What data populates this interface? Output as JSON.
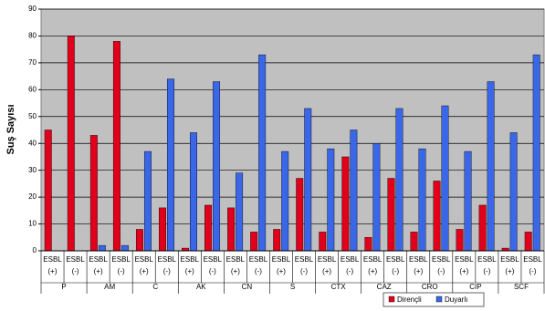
{
  "chart_data": {
    "type": "bar",
    "y_label": "Suş Sayısı",
    "groups": [
      "P",
      "AM",
      "C",
      "AK",
      "CN",
      "S",
      "CTX",
      "CAZ",
      "CRO",
      "CIP",
      "SCF"
    ],
    "categories": [
      [
        "ESBL",
        "(+)"
      ],
      [
        "ESBL",
        "(-)"
      ],
      [
        "ESBL",
        "(+)"
      ],
      [
        "ESBL",
        "(-)"
      ],
      [
        "ESBL",
        "(+)"
      ],
      [
        "ESBL",
        "(-)"
      ],
      [
        "ESBL",
        "(+)"
      ],
      [
        "ESBL",
        "(-)"
      ],
      [
        "ESBL",
        "(+)"
      ],
      [
        "ESBL",
        "(-)"
      ],
      [
        "ESBL",
        "(+)"
      ],
      [
        "ESBL",
        "(-)"
      ],
      [
        "ESBL",
        "(+)"
      ],
      [
        "ESBL",
        "(-)"
      ],
      [
        "ESBL",
        "(+)"
      ],
      [
        "ESBL",
        "(-)"
      ],
      [
        "ESBL",
        "(+)"
      ],
      [
        "ESBL",
        "(-)"
      ],
      [
        "ESBL",
        "(+)"
      ],
      [
        "ESBL",
        "(-)"
      ],
      [
        "ESBL",
        "(+)"
      ],
      [
        "ESBL",
        "(-)"
      ]
    ],
    "series": [
      {
        "name": "Dirençli",
        "color": "#e0001b",
        "values": [
          45,
          80,
          43,
          78,
          8,
          16,
          1,
          17,
          16,
          7,
          8,
          27,
          7,
          35,
          5,
          27,
          7,
          26,
          8,
          17,
          1,
          7
        ]
      },
      {
        "name": "Duyarlı",
        "color": "#3a66e8",
        "values": [
          0,
          0,
          2,
          2,
          37,
          64,
          44,
          63,
          29,
          73,
          37,
          53,
          38,
          45,
          40,
          53,
          38,
          54,
          37,
          63,
          44,
          73
        ]
      }
    ],
    "ylim": [
      0,
      90
    ],
    "yticks": [
      0,
      10,
      20,
      30,
      40,
      50,
      60,
      70,
      80,
      90
    ],
    "grid": true,
    "legend": "bottom-right"
  }
}
